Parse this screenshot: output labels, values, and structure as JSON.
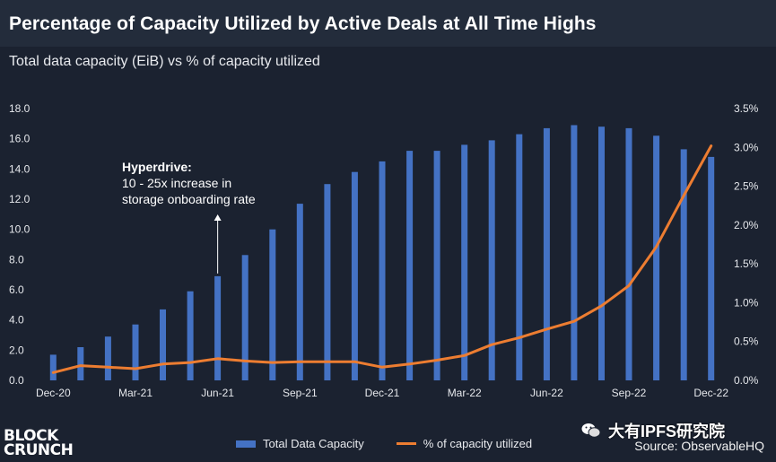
{
  "title": "Percentage of Capacity Utilized by Active Deals at All Time Highs",
  "subtitle": "Total data capacity (EiB) vs % of capacity utilized",
  "annotation": {
    "heading": "Hyperdrive:",
    "lines": [
      "10 - 25x increase in",
      "storage onboarding rate"
    ]
  },
  "legend": {
    "bar": "Total Data Capacity",
    "line": "% of capacity utilized"
  },
  "logo": {
    "line1": "BLOCK",
    "line2": "CRUNCH"
  },
  "source": "Source: ObservableHQ",
  "watermark": "大有IPFS研究院",
  "colors": {
    "background": "#1b2230",
    "bar": "#4472c4",
    "line": "#ed7d31",
    "text": "#ffffff"
  },
  "chart_data": {
    "type": "bar+line",
    "title": "Percentage of Capacity Utilized by Active Deals at All Time Highs",
    "subtitle": "Total data capacity (EiB) vs % of capacity utilized",
    "x_tick_labels": [
      "Dec-20",
      "Mar-21",
      "Jun-21",
      "Sep-21",
      "Dec-21",
      "Mar-22",
      "Jun-22",
      "Sep-22",
      "Dec-22"
    ],
    "left_axis": {
      "ylim": [
        0,
        18
      ],
      "ticks": [
        "0.0",
        "2.0",
        "4.0",
        "6.0",
        "8.0",
        "10.0",
        "12.0",
        "14.0",
        "16.0",
        "18.0"
      ]
    },
    "right_axis": {
      "ylim": [
        0,
        3.5
      ],
      "ticks": [
        "0.0%",
        "0.5%",
        "1.0%",
        "1.5%",
        "2.0%",
        "2.5%",
        "3.0%",
        "3.5%"
      ]
    },
    "series": [
      {
        "name": "Total Data Capacity",
        "axis": "left",
        "kind": "bar",
        "values": [
          1.7,
          2.2,
          2.9,
          3.7,
          4.7,
          5.9,
          6.9,
          8.3,
          10.0,
          11.7,
          13.0,
          13.8,
          14.5,
          15.2,
          15.2,
          15.6,
          15.9,
          16.3,
          16.7,
          16.9,
          16.8,
          16.7,
          16.2,
          15.3,
          14.8
        ]
      },
      {
        "name": "% of capacity utilized",
        "axis": "right",
        "kind": "line",
        "values": [
          0.1,
          0.19,
          0.17,
          0.15,
          0.21,
          0.23,
          0.28,
          0.25,
          0.23,
          0.24,
          0.24,
          0.24,
          0.17,
          0.21,
          0.26,
          0.32,
          0.46,
          0.55,
          0.66,
          0.76,
          0.96,
          1.22,
          1.72,
          2.38,
          3.02
        ]
      }
    ],
    "legend_position": "bottom"
  }
}
